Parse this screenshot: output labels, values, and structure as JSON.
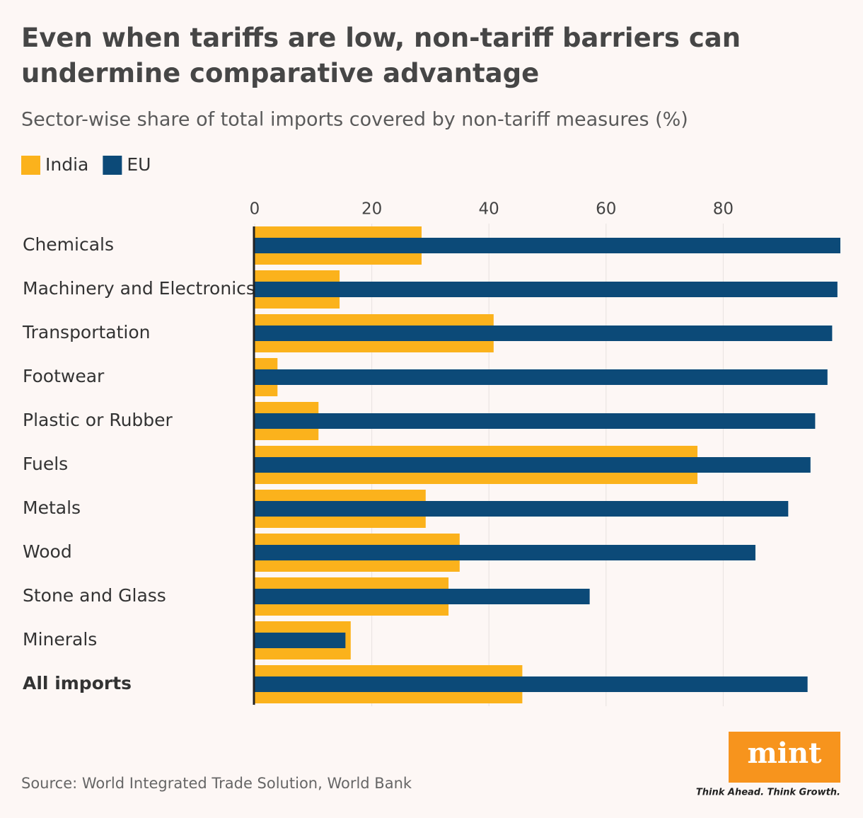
{
  "chart_data": {
    "type": "bar",
    "title": "Even when tariffs are low, non-tariff barriers can undermine comparative advantage",
    "subtitle": "Sector-wise share of total imports covered by non-tariff measures (%)",
    "categories": [
      "Chemicals",
      "Machinery and Electronics",
      "Transportation",
      "Footwear",
      "Plastic or Rubber",
      "Fuels",
      "Metals",
      "Wood",
      "Stone and Glass",
      "Minerals",
      "All imports"
    ],
    "series": [
      {
        "name": "India",
        "color": "#fbb21c",
        "values": [
          28.5,
          14.5,
          40.8,
          3.9,
          10.9,
          75.6,
          29.2,
          35.0,
          33.1,
          16.4,
          45.7
        ]
      },
      {
        "name": "EU",
        "color": "#0c4a78",
        "values": [
          100,
          99.5,
          98.6,
          97.8,
          95.7,
          94.9,
          91.1,
          85.5,
          57.2,
          15.5,
          94.4
        ]
      }
    ],
    "xlim": [
      0,
      100
    ],
    "xticks": [
      0,
      20,
      40,
      60,
      80
    ],
    "grid": true,
    "source": "Source: World Integrated Trade Solution, World Bank",
    "brand": {
      "name": "mint",
      "tagline": "Think Ahead. Think Growth."
    }
  }
}
